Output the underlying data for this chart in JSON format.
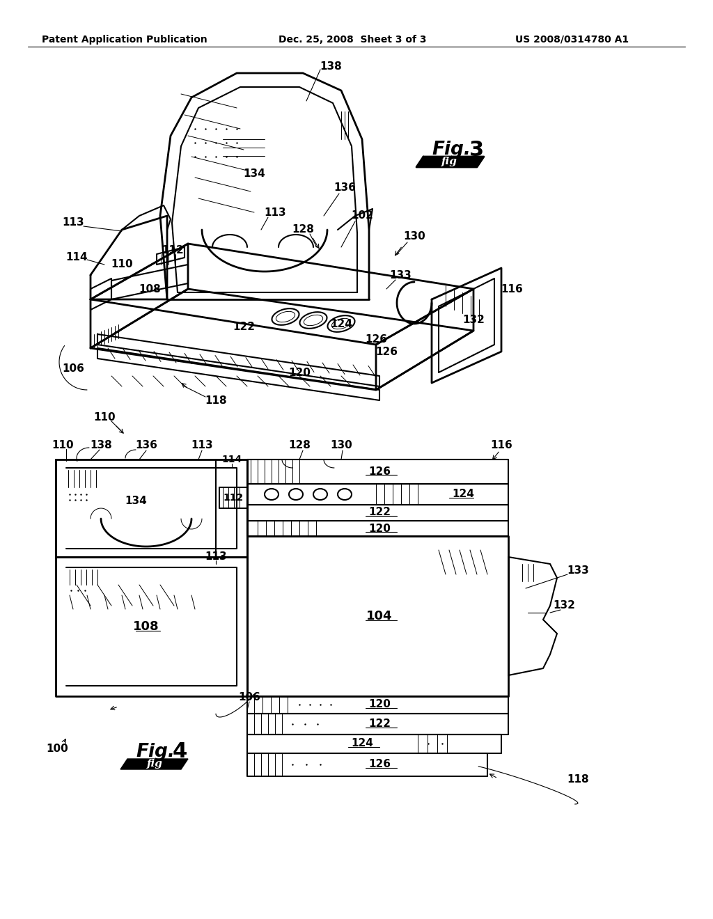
{
  "background": "#ffffff",
  "header_left": "Patent Application Publication",
  "header_center": "Dec. 25, 2008  Sheet 3 of 3",
  "header_right": "US 2008/0314780 A1",
  "lc": "#000000",
  "lw": 1.5,
  "tlw": 0.7,
  "thickw": 2.0,
  "fs": 11,
  "fs_fig": 20
}
